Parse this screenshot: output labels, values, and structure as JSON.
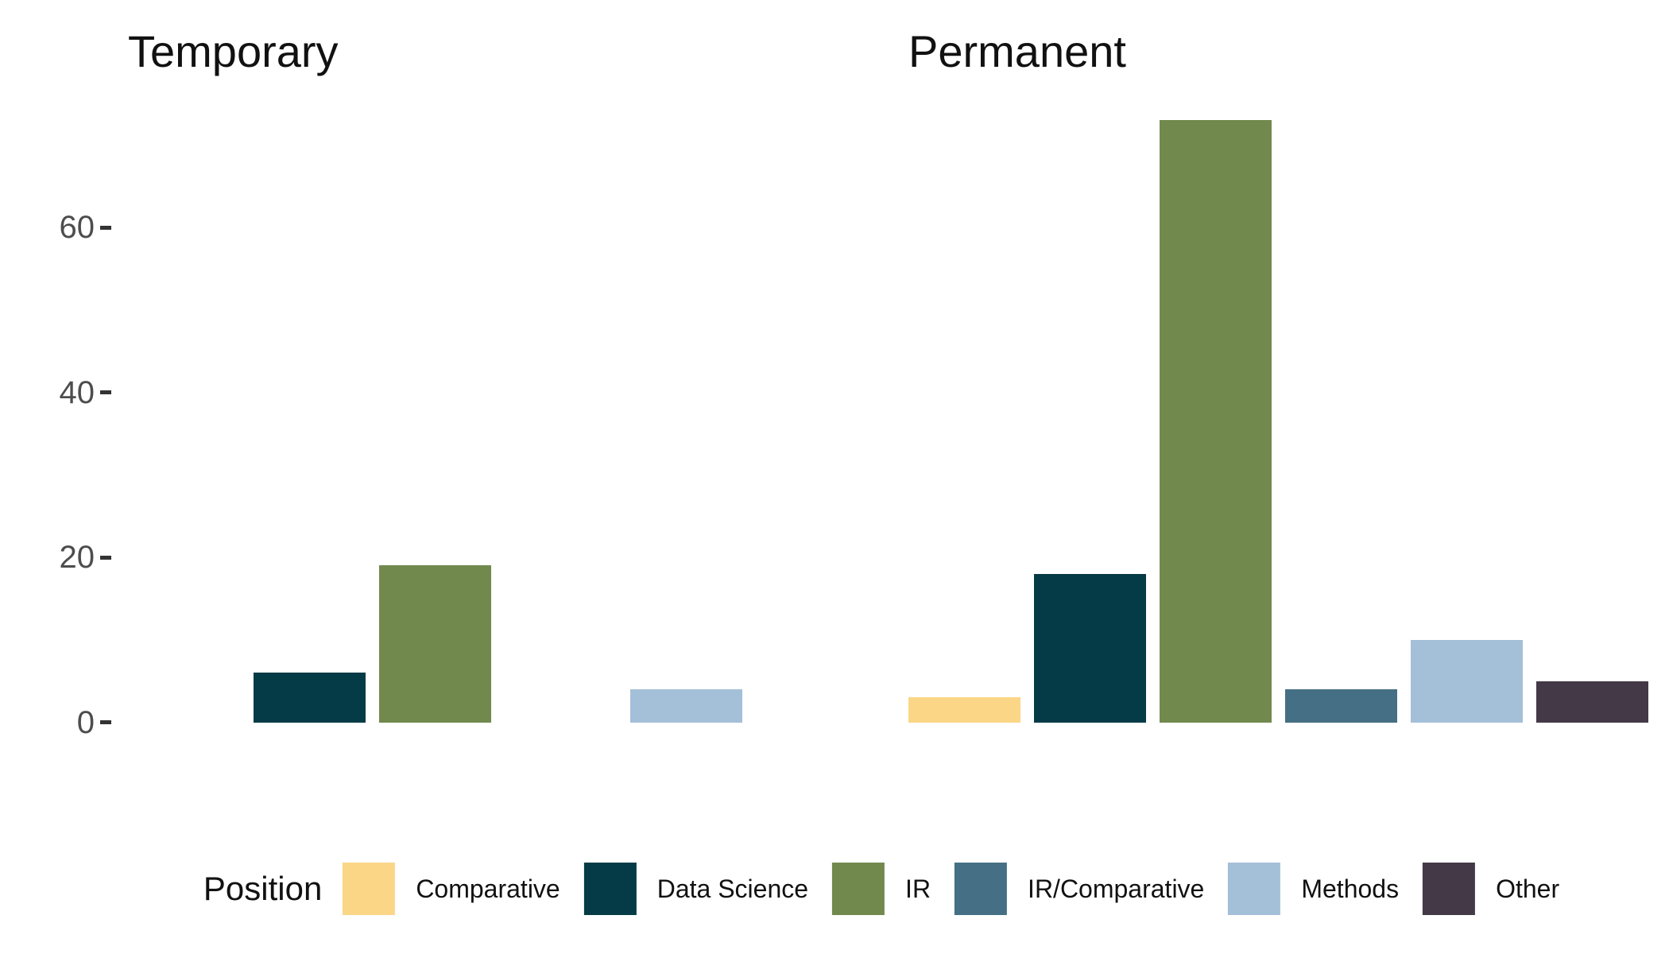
{
  "chart_data": {
    "type": "bar",
    "title": "",
    "xlabel": "",
    "ylabel": "",
    "grid": false,
    "facet_labels": [
      "Temporary",
      "Permanent"
    ],
    "categories": [
      "Comparative",
      "Data Science",
      "IR",
      "IR/Comparative",
      "Methods",
      "Other"
    ],
    "series": [
      {
        "name": "Temporary",
        "values": [
          0,
          6,
          19,
          0,
          4,
          0
        ]
      },
      {
        "name": "Permanent",
        "values": [
          3,
          18,
          73,
          4,
          10,
          5
        ]
      }
    ],
    "yticks": [
      0,
      20,
      40,
      60
    ],
    "ylim": [
      0,
      77
    ],
    "legend_title": "Position",
    "legend_position": "bottom",
    "colors": {
      "Comparative": "#FBD687",
      "Data Science": "#053B46",
      "IR": "#72894E",
      "IR/Comparative": "#456F85",
      "Methods": "#A4BFD8",
      "Other": "#443947"
    },
    "tick_label_color": "#4D4D4D",
    "tick_mark_color": "#333333",
    "text_color": "#111111",
    "background_color": "#FFFFFF"
  }
}
